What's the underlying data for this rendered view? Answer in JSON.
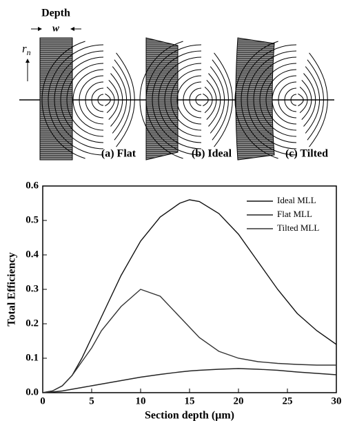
{
  "diagram": {
    "depth_label": "Depth",
    "width_symbol": "w",
    "radius_symbol": "r",
    "radius_subscript": "n",
    "panels": [
      "(a) Flat",
      "(b) Ideal",
      "(c) Tilted"
    ]
  },
  "chart_data": {
    "type": "line",
    "x_label": "Section depth (μm)",
    "y_label": "Total Efficiency",
    "x": [
      0,
      1,
      2,
      3,
      4,
      5,
      6,
      8,
      10,
      12,
      14,
      15,
      16,
      18,
      20,
      22,
      24,
      26,
      28,
      30
    ],
    "series": [
      {
        "name": "Ideal MLL",
        "color": "#111111",
        "values": [
          0.0,
          0.005,
          0.02,
          0.05,
          0.1,
          0.16,
          0.22,
          0.34,
          0.44,
          0.51,
          0.55,
          0.56,
          0.555,
          0.52,
          0.46,
          0.38,
          0.3,
          0.23,
          0.18,
          0.14
        ]
      },
      {
        "name": "Flat MLL",
        "color": "#222222",
        "values": [
          0.0,
          0.002,
          0.005,
          0.01,
          0.015,
          0.02,
          0.025,
          0.035,
          0.045,
          0.053,
          0.06,
          0.063,
          0.065,
          0.068,
          0.07,
          0.068,
          0.065,
          0.06,
          0.056,
          0.052
        ]
      },
      {
        "name": "Tilted MLL",
        "color": "#333333",
        "values": [
          0.0,
          0.005,
          0.02,
          0.05,
          0.09,
          0.13,
          0.18,
          0.25,
          0.3,
          0.28,
          0.22,
          0.19,
          0.16,
          0.12,
          0.1,
          0.09,
          0.085,
          0.082,
          0.08,
          0.08
        ]
      }
    ],
    "xlim": [
      0,
      30
    ],
    "xticks": [
      0,
      5,
      10,
      15,
      20,
      25,
      30
    ],
    "ylim": [
      0,
      0.6
    ],
    "yticks": [
      {
        "value": 0,
        "label": "0.0"
      },
      0.1,
      0.2,
      0.3,
      0.4,
      0.5,
      0.6
    ],
    "legend": "upper right"
  }
}
